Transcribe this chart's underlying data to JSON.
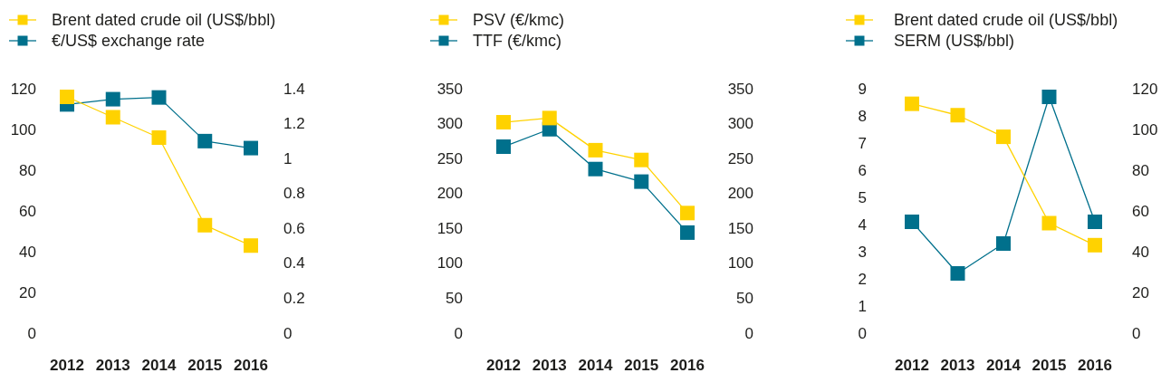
{
  "chart_data": [
    {
      "type": "line",
      "categories": [
        "2012",
        "2013",
        "2014",
        "2015",
        "2016"
      ],
      "series": [
        {
          "name": "Brent dated crude oil (US$/bbl)",
          "color": "#ffd200",
          "values": [
            116,
            106,
            96,
            53,
            43
          ]
        },
        {
          "name": "€/US$ exchange rate",
          "color": "#00708c",
          "values": [
            1.31,
            1.34,
            1.35,
            1.1,
            1.06
          ],
          "axis": "y2"
        }
      ],
      "ylim": [
        0,
        120
      ],
      "yticks": [
        0,
        20,
        40,
        60,
        80,
        100,
        120
      ],
      "y2lim": [
        0,
        1.4
      ],
      "y2ticks": [
        0,
        0.2,
        0.4,
        0.6,
        0.8,
        1,
        1.2,
        1.4
      ],
      "marker": "square",
      "legend": "top left"
    },
    {
      "type": "line",
      "categories": [
        "2012",
        "2013",
        "2014",
        "2015",
        "2016"
      ],
      "series": [
        {
          "name": "PSV (€/kmc)",
          "color": "#ffd200",
          "values": [
            302,
            308,
            262,
            248,
            172
          ]
        },
        {
          "name": "TTF (€/kmc)",
          "color": "#00708c",
          "values": [
            267,
            292,
            235,
            217,
            144
          ]
        }
      ],
      "ylim": [
        0,
        350
      ],
      "yticks": [
        0,
        50,
        100,
        150,
        200,
        250,
        300,
        350
      ],
      "y2lim": [
        0,
        350
      ],
      "y2ticks": [
        0,
        50,
        100,
        150,
        200,
        250,
        300,
        350
      ],
      "marker": "square",
      "legend": "top left"
    },
    {
      "type": "line",
      "categories": [
        "2012",
        "2013",
        "2014",
        "2015",
        "2016"
      ],
      "series": [
        {
          "name": "Brent dated crude oil (US$/bbl)",
          "color": "#ffd200",
          "values": [
            112.6,
            107,
            96.4,
            54,
            43.2
          ],
          "axis": "y2"
        },
        {
          "name": "SERM (US$/bbl)",
          "color": "#00708c",
          "values": [
            4.1,
            2.2,
            3.3,
            8.7,
            4.1
          ]
        }
      ],
      "ylim": [
        0,
        9
      ],
      "yticks": [
        0,
        1,
        2,
        3,
        4,
        5,
        6,
        7,
        8,
        9
      ],
      "y2lim": [
        0,
        120
      ],
      "y2ticks": [
        0,
        20,
        40,
        60,
        80,
        100,
        120
      ],
      "marker": "square",
      "legend": "top left"
    }
  ]
}
